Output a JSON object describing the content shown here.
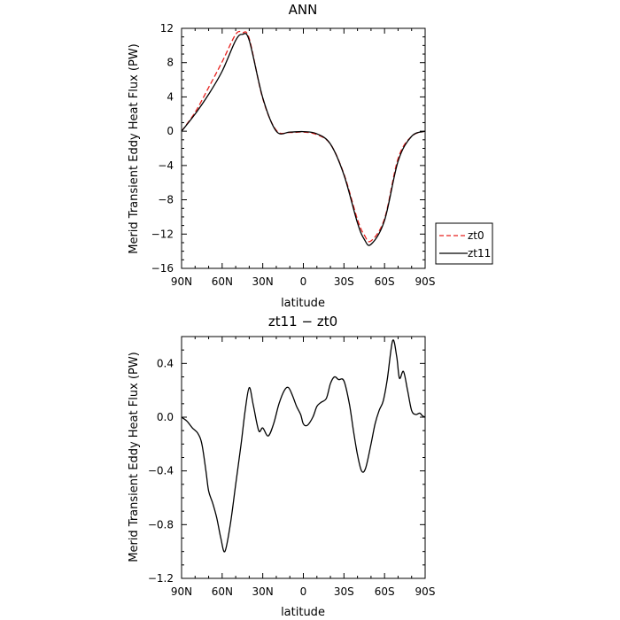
{
  "chart_data": [
    {
      "type": "line",
      "title": "ANN",
      "xlabel": "latitude",
      "ylabel": "Merid Transient Eddy Heat Flux (PW)",
      "xlim": [
        90,
        -90
      ],
      "ylim": [
        -16,
        12
      ],
      "x_ticks": [
        {
          "value": 90,
          "label": "90N"
        },
        {
          "value": 60,
          "label": "60N"
        },
        {
          "value": 30,
          "label": "30N"
        },
        {
          "value": 0,
          "label": "0"
        },
        {
          "value": -30,
          "label": "30S"
        },
        {
          "value": -60,
          "label": "60S"
        },
        {
          "value": -90,
          "label": "90S"
        }
      ],
      "y_ticks": [
        {
          "value": 12,
          "label": "12"
        },
        {
          "value": 8,
          "label": "8"
        },
        {
          "value": 4,
          "label": "4"
        },
        {
          "value": 0,
          "label": "0"
        },
        {
          "value": -4,
          "label": "−4"
        },
        {
          "value": -8,
          "label": "−8"
        },
        {
          "value": -12,
          "label": "−12"
        },
        {
          "value": -16,
          "label": "−16"
        }
      ],
      "legend": {
        "placement": "right",
        "entries": [
          "zt0",
          "zt11"
        ]
      },
      "series": [
        {
          "name": "zt0",
          "color": "#e8211e",
          "dash": true,
          "x": [
            90,
            80,
            70,
            60,
            50,
            45,
            40,
            30,
            20,
            10,
            0,
            -10,
            -20,
            -30,
            -40,
            -45,
            -50,
            -60,
            -70,
            -80,
            -90
          ],
          "y": [
            0,
            2.2,
            5.1,
            8.1,
            11.3,
            11.5,
            10.8,
            3.8,
            0.1,
            -0.15,
            -0.1,
            -0.4,
            -1.5,
            -5.0,
            -10.3,
            -12.1,
            -12.8,
            -10.2,
            -3.2,
            -0.6,
            0
          ]
        },
        {
          "name": "zt11",
          "color": "#000000",
          "dash": false,
          "x": [
            90,
            80,
            70,
            60,
            50,
            45,
            40,
            30,
            20,
            10,
            0,
            -10,
            -20,
            -30,
            -40,
            -45,
            -50,
            -60,
            -70,
            -80,
            -90
          ],
          "y": [
            0,
            2.0,
            4.3,
            7.0,
            10.6,
            11.3,
            10.6,
            3.9,
            0.0,
            -0.1,
            -0.05,
            -0.3,
            -1.5,
            -5.1,
            -10.7,
            -12.6,
            -13.2,
            -10.4,
            -3.5,
            -0.6,
            0
          ]
        }
      ]
    },
    {
      "type": "line",
      "title": "zt11 − zt0",
      "xlabel": "latitude",
      "ylabel": "Merid Transient Eddy Heat Flux (PW)",
      "xlim": [
        90,
        -90
      ],
      "ylim": [
        -1.2,
        0.6
      ],
      "x_ticks": [
        {
          "value": 90,
          "label": "90N"
        },
        {
          "value": 60,
          "label": "60N"
        },
        {
          "value": 30,
          "label": "30N"
        },
        {
          "value": 0,
          "label": "0"
        },
        {
          "value": -30,
          "label": "30S"
        },
        {
          "value": -60,
          "label": "60S"
        },
        {
          "value": -90,
          "label": "90S"
        }
      ],
      "y_ticks": [
        {
          "value": 0.4,
          "label": "0.4"
        },
        {
          "value": 0.0,
          "label": "0.0"
        },
        {
          "value": -0.4,
          "label": "−0.4"
        },
        {
          "value": -0.8,
          "label": "−0.8"
        },
        {
          "value": -1.2,
          "label": "−1.2"
        }
      ],
      "series": [
        {
          "color": "#000000",
          "dash": false,
          "x": [
            90,
            86,
            82,
            78,
            75,
            72,
            70,
            67,
            64,
            61,
            58,
            54,
            50,
            46,
            43,
            40,
            37,
            33,
            30,
            26,
            22,
            18,
            14,
            11,
            8,
            5,
            2,
            0,
            -3,
            -7,
            -10,
            -13,
            -17,
            -20,
            -23,
            -26,
            -30,
            -34,
            -37,
            -40,
            -43,
            -46,
            -50,
            -53,
            -56,
            -59,
            -62,
            -66,
            -69,
            -71,
            -74,
            -77,
            -80,
            -83,
            -86,
            -88,
            -90
          ],
          "y": [
            0.0,
            -0.03,
            -0.08,
            -0.12,
            -0.2,
            -0.4,
            -0.55,
            -0.64,
            -0.75,
            -0.9,
            -1.0,
            -0.8,
            -0.5,
            -0.2,
            0.05,
            0.22,
            0.09,
            -0.1,
            -0.08,
            -0.14,
            -0.05,
            0.1,
            0.2,
            0.22,
            0.16,
            0.08,
            0.02,
            -0.05,
            -0.06,
            0.0,
            0.08,
            0.11,
            0.14,
            0.25,
            0.3,
            0.28,
            0.27,
            0.1,
            -0.1,
            -0.28,
            -0.4,
            -0.38,
            -0.2,
            -0.05,
            0.05,
            0.12,
            0.28,
            0.57,
            0.45,
            0.29,
            0.34,
            0.2,
            0.05,
            0.02,
            0.03,
            0.01,
            0.0
          ]
        }
      ]
    }
  ]
}
